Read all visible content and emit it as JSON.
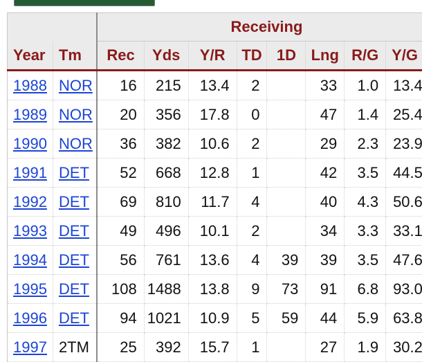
{
  "group_header": "Receiving",
  "columns": [
    "Year",
    "Tm",
    "Rec",
    "Yds",
    "Y/R",
    "TD",
    "1D",
    "Lng",
    "R/G",
    "Y/G"
  ],
  "rows": [
    {
      "year": "1988",
      "tm": "NOR",
      "tm_link": true,
      "rec": "16",
      "yds": "215",
      "yr": "13.4",
      "td": "2",
      "fd": "",
      "lng": "33",
      "rg": "1.0",
      "yg": "13.4"
    },
    {
      "year": "1989",
      "tm": "NOR",
      "tm_link": true,
      "rec": "20",
      "yds": "356",
      "yr": "17.8",
      "td": "0",
      "fd": "",
      "lng": "47",
      "rg": "1.4",
      "yg": "25.4"
    },
    {
      "year": "1990",
      "tm": "NOR",
      "tm_link": true,
      "rec": "36",
      "yds": "382",
      "yr": "10.6",
      "td": "2",
      "fd": "",
      "lng": "29",
      "rg": "2.3",
      "yg": "23.9"
    },
    {
      "year": "1991",
      "tm": "DET",
      "tm_link": true,
      "rec": "52",
      "yds": "668",
      "yr": "12.8",
      "td": "1",
      "fd": "",
      "lng": "42",
      "rg": "3.5",
      "yg": "44.5"
    },
    {
      "year": "1992",
      "tm": "DET",
      "tm_link": true,
      "rec": "69",
      "yds": "810",
      "yr": "11.7",
      "td": "4",
      "fd": "",
      "lng": "40",
      "rg": "4.3",
      "yg": "50.6"
    },
    {
      "year": "1993",
      "tm": "DET",
      "tm_link": true,
      "rec": "49",
      "yds": "496",
      "yr": "10.1",
      "td": "2",
      "fd": "",
      "lng": "34",
      "rg": "3.3",
      "yg": "33.1"
    },
    {
      "year": "1994",
      "tm": "DET",
      "tm_link": true,
      "rec": "56",
      "yds": "761",
      "yr": "13.6",
      "td": "4",
      "fd": "39",
      "lng": "39",
      "rg": "3.5",
      "yg": "47.6"
    },
    {
      "year": "1995",
      "tm": "DET",
      "tm_link": true,
      "rec": "108",
      "yds": "1488",
      "yr": "13.8",
      "td": "9",
      "fd": "73",
      "lng": "91",
      "rg": "6.8",
      "yg": "93.0"
    },
    {
      "year": "1996",
      "tm": "DET",
      "tm_link": true,
      "rec": "94",
      "yds": "1021",
      "yr": "10.9",
      "td": "5",
      "fd": "59",
      "lng": "44",
      "rg": "5.9",
      "yg": "63.8"
    },
    {
      "year": "1997",
      "tm": "2TM",
      "tm_link": false,
      "rec": "25",
      "yds": "392",
      "yr": "15.7",
      "td": "1",
      "fd": "",
      "lng": "27",
      "rg": "1.9",
      "yg": "30.2"
    }
  ],
  "colors": {
    "accent": "#8a1a1a",
    "link": "#1b44d6",
    "header_bg": "#ebebeb",
    "button_green": "#255b33"
  }
}
